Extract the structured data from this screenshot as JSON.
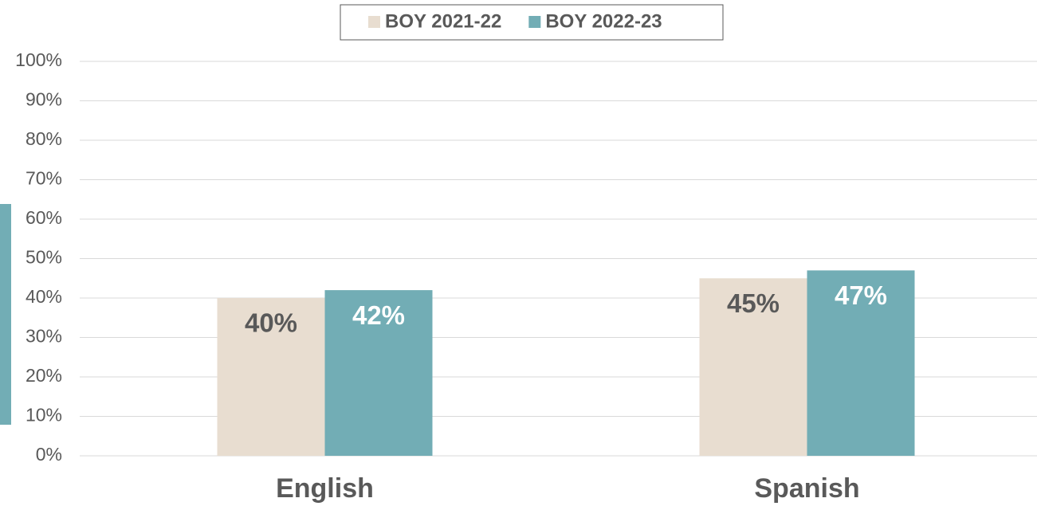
{
  "chart_data": {
    "type": "bar",
    "categories": [
      "English",
      "Spanish"
    ],
    "series": [
      {
        "name": "BOY 2021-22",
        "color": "#e8ddd0",
        "values": [
          40,
          45
        ],
        "value_labels": [
          "40%",
          "45%"
        ]
      },
      {
        "name": "BOY 2022-23",
        "color": "#72adb5",
        "values": [
          42,
          47
        ],
        "value_labels": [
          "42%",
          "47%"
        ]
      }
    ],
    "ylim": [
      0,
      100
    ],
    "yticks": [
      {
        "value": 0,
        "label": "0%"
      },
      {
        "value": 10,
        "label": "10%"
      },
      {
        "value": 20,
        "label": "20%"
      },
      {
        "value": 30,
        "label": "30%"
      },
      {
        "value": 40,
        "label": "40%"
      },
      {
        "value": 50,
        "label": "50%"
      },
      {
        "value": 60,
        "label": "60%"
      },
      {
        "value": 70,
        "label": "70%"
      },
      {
        "value": 80,
        "label": "80%"
      },
      {
        "value": 90,
        "label": "90%"
      },
      {
        "value": 100,
        "label": "100%"
      }
    ],
    "grid": true,
    "legend": "top"
  }
}
